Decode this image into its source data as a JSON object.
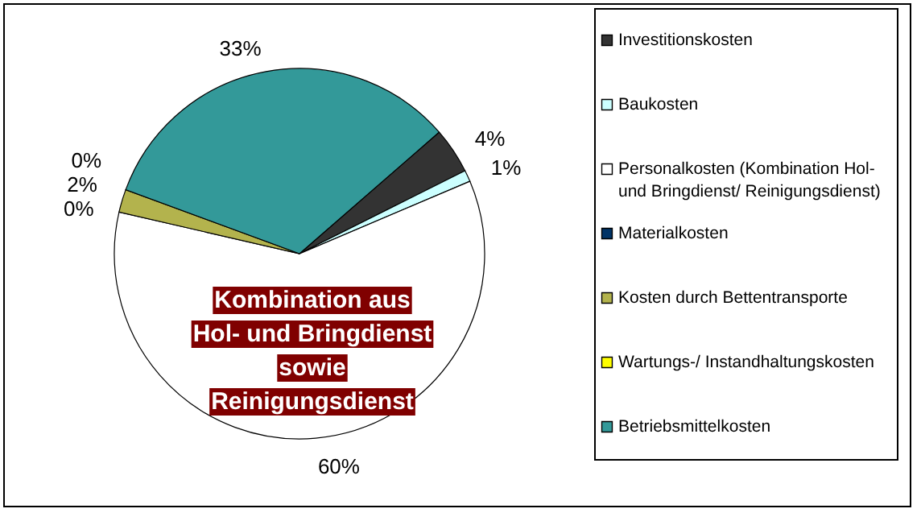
{
  "chart_data": {
    "type": "pie",
    "categories": [
      "Investitionskosten",
      "Baukosten",
      "Personalkosten (Kombination Hol- und Bringdienst/ Reinigungsdienst)",
      "Materialkosten",
      "Kosten durch Bettentransporte",
      "Wartungs-/ Instandhaltungskosten",
      "Betriebsmittelkosten"
    ],
    "values": [
      4,
      1,
      60,
      0,
      2,
      0,
      33
    ],
    "value_labels": [
      "4%",
      "1%",
      "60%",
      "0%",
      "2%",
      "0%",
      "33%"
    ],
    "colors": [
      "#333333",
      "#ccffff",
      "#ffffff",
      "#003366",
      "#b3b34d",
      "#ffff00",
      "#339999"
    ],
    "annotations": [
      "Kombination aus\nHol- und Bringdienst\nsowie\nReinigungsdienst"
    ],
    "legend": "right"
  }
}
